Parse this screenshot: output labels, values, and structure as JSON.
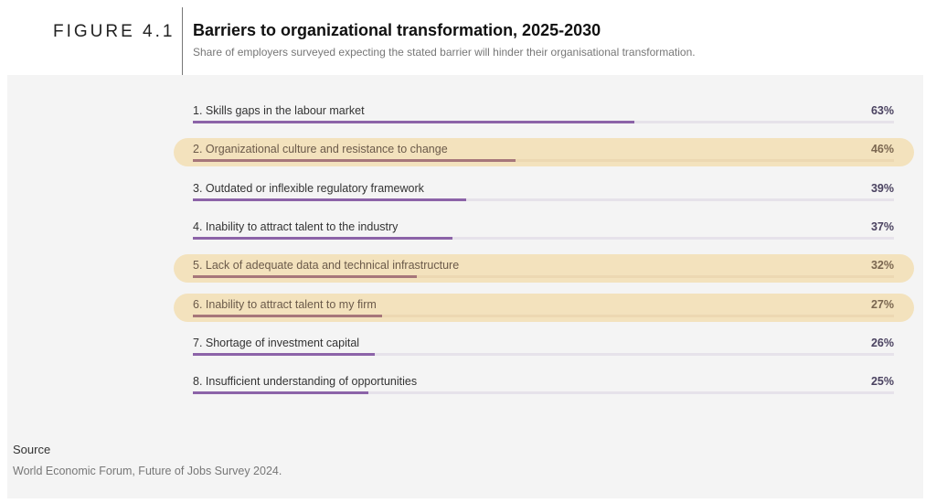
{
  "figure_label": "FIGURE 4.1",
  "chart_data": {
    "type": "bar",
    "orientation": "horizontal",
    "title": "Barriers to organizational transformation, 2025-2030",
    "subtitle": "Share of employers surveyed expecting the stated barrier will hinder their organisational transformation.",
    "xlabel": "",
    "ylabel": "",
    "xlim": [
      0,
      100
    ],
    "unit": "%",
    "categories": [
      "1.  Skills gaps in the labour market",
      "2.  Organizational culture and resistance to change",
      "3.  Outdated or inflexible regulatory framework",
      "4.  Inability to attract talent to the industry",
      "5.  Lack of adequate data and technical infrastructure",
      "6.  Inability to attract talent to my firm",
      "7.  Shortage of investment capital",
      "8.  Insufficient understanding of opportunities"
    ],
    "values": [
      63,
      46,
      39,
      37,
      32,
      27,
      26,
      25
    ],
    "value_labels": [
      "63%",
      "46%",
      "39%",
      "37%",
      "32%",
      "27%",
      "26%",
      "25%"
    ],
    "highlighted": [
      false,
      true,
      false,
      false,
      true,
      true,
      false,
      false
    ],
    "colors": {
      "bar": "#8c63a8",
      "bar_highlighted": "#a6767a",
      "highlight_background": "#f3e2bd",
      "track": "#e6e2ea"
    }
  },
  "source": {
    "heading": "Source",
    "text": "World Economic Forum, Future of Jobs Survey 2024."
  }
}
